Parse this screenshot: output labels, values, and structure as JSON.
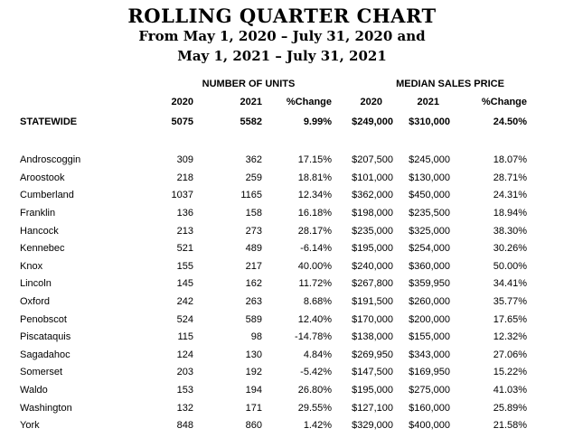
{
  "colors": {
    "background": "#ffffff",
    "text": "#000000"
  },
  "header": {
    "title": "ROLLING QUARTER CHART",
    "subtitle_line1": "From May 1, 2020 – July 31, 2020 and",
    "subtitle_line2": "May 1, 2021 – July 31, 2021"
  },
  "table": {
    "group_headers": [
      "NUMBER OF UNITS",
      "MEDIAN SALES PRICE"
    ],
    "column_headers": [
      "2020",
      "2021",
      "%Change",
      "2020",
      "2021",
      "%Change"
    ],
    "statewide": {
      "label": "STATEWIDE",
      "values": [
        "5075",
        "5582",
        "9.99%",
        "$249,000",
        "$310,000",
        "24.50%"
      ]
    },
    "rows": [
      {
        "label": "Androscoggin",
        "values": [
          "309",
          "362",
          "17.15%",
          "$207,500",
          "$245,000",
          "18.07%"
        ]
      },
      {
        "label": "Aroostook",
        "values": [
          "218",
          "259",
          "18.81%",
          "$101,000",
          "$130,000",
          "28.71%"
        ]
      },
      {
        "label": "Cumberland",
        "values": [
          "1037",
          "1165",
          "12.34%",
          "$362,000",
          "$450,000",
          "24.31%"
        ]
      },
      {
        "label": "Franklin",
        "values": [
          "136",
          "158",
          "16.18%",
          "$198,000",
          "$235,500",
          "18.94%"
        ]
      },
      {
        "label": "Hancock",
        "values": [
          "213",
          "273",
          "28.17%",
          "$235,000",
          "$325,000",
          "38.30%"
        ]
      },
      {
        "label": "Kennebec",
        "values": [
          "521",
          "489",
          "-6.14%",
          "$195,000",
          "$254,000",
          "30.26%"
        ]
      },
      {
        "label": "Knox",
        "values": [
          "155",
          "217",
          "40.00%",
          "$240,000",
          "$360,000",
          "50.00%"
        ]
      },
      {
        "label": "Lincoln",
        "values": [
          "145",
          "162",
          "11.72%",
          "$267,800",
          "$359,950",
          "34.41%"
        ]
      },
      {
        "label": "Oxford",
        "values": [
          "242",
          "263",
          "8.68%",
          "$191,500",
          "$260,000",
          "35.77%"
        ]
      },
      {
        "label": "Penobscot",
        "values": [
          "524",
          "589",
          "12.40%",
          "$170,000",
          "$200,000",
          "17.65%"
        ]
      },
      {
        "label": "Piscataquis",
        "values": [
          "115",
          "98",
          "-14.78%",
          "$138,000",
          "$155,000",
          "12.32%"
        ]
      },
      {
        "label": "Sagadahoc",
        "values": [
          "124",
          "130",
          "4.84%",
          "$269,950",
          "$343,000",
          "27.06%"
        ]
      },
      {
        "label": "Somerset",
        "values": [
          "203",
          "192",
          "-5.42%",
          "$147,500",
          "$169,950",
          "15.22%"
        ]
      },
      {
        "label": "Waldo",
        "values": [
          "153",
          "194",
          "26.80%",
          "$195,000",
          "$275,000",
          "41.03%"
        ]
      },
      {
        "label": "Washington",
        "values": [
          "132",
          "171",
          "29.55%",
          "$127,100",
          "$160,000",
          "25.89%"
        ]
      },
      {
        "label": "York",
        "values": [
          "848",
          "860",
          "1.42%",
          "$329,000",
          "$400,000",
          "21.58%"
        ]
      }
    ]
  }
}
